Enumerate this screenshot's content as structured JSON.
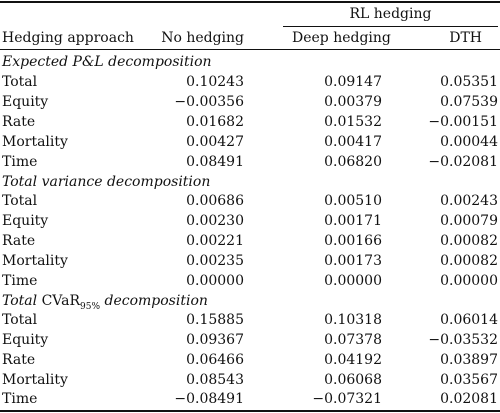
{
  "header": {
    "rl_group": "RL hedging",
    "col_approach": "Hedging approach",
    "col_no_hedging": "No hedging",
    "col_deep": "Deep hedging",
    "col_dth": "DTH"
  },
  "sections": [
    {
      "title": "Expected P&L decomposition",
      "rows": [
        {
          "label": "Total",
          "no_hedging": "0.10243",
          "deep": "0.09147",
          "dth": "0.05351"
        },
        {
          "label": "Equity",
          "no_hedging": "−0.00356",
          "deep": "0.00379",
          "dth": "0.07539"
        },
        {
          "label": "Rate",
          "no_hedging": "0.01682",
          "deep": "0.01532",
          "dth": "−0.00151"
        },
        {
          "label": "Mortality",
          "no_hedging": "0.00427",
          "deep": "0.00417",
          "dth": "0.00044"
        },
        {
          "label": "Time",
          "no_hedging": "0.08491",
          "deep": "0.06820",
          "dth": "−0.02081"
        }
      ]
    },
    {
      "title": "Total variance decomposition",
      "rows": [
        {
          "label": "Total",
          "no_hedging": "0.00686",
          "deep": "0.00510",
          "dth": "0.00243"
        },
        {
          "label": "Equity",
          "no_hedging": "0.00230",
          "deep": "0.00171",
          "dth": "0.00079"
        },
        {
          "label": "Rate",
          "no_hedging": "0.00221",
          "deep": "0.00166",
          "dth": "0.00082"
        },
        {
          "label": "Mortality",
          "no_hedging": "0.00235",
          "deep": "0.00173",
          "dth": "0.00082"
        },
        {
          "label": "Time",
          "no_hedging": "0.00000",
          "deep": "0.00000",
          "dth": "0.00000"
        }
      ]
    },
    {
      "title_prefix": "Total ",
      "title_main": "CVaR",
      "title_sub": "95%",
      "title_suffix": " decomposition",
      "rows": [
        {
          "label": "Total",
          "no_hedging": "0.15885",
          "deep": "0.10318",
          "dth": "0.06014"
        },
        {
          "label": "Equity",
          "no_hedging": "0.09367",
          "deep": "0.07378",
          "dth": "−0.03532"
        },
        {
          "label": "Rate",
          "no_hedging": "0.06466",
          "deep": "0.04192",
          "dth": "0.03897"
        },
        {
          "label": "Mortality",
          "no_hedging": "0.08543",
          "deep": "0.06068",
          "dth": "0.03567"
        },
        {
          "label": "Time",
          "no_hedging": "−0.08491",
          "deep": "−0.07321",
          "dth": "0.02081"
        }
      ]
    }
  ]
}
